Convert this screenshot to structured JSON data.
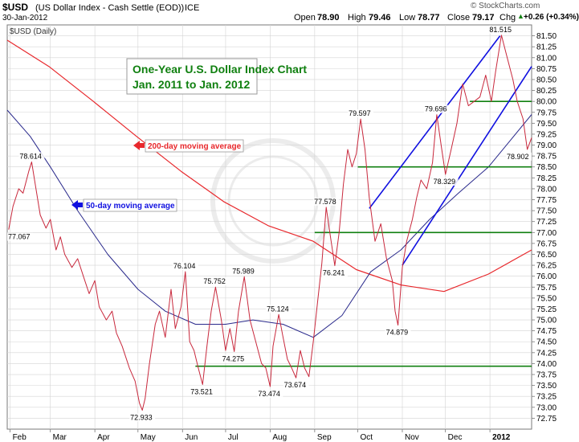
{
  "header": {
    "symbol": "$USD",
    "name": "(US Dollar Index - Cash Settle (EOD))",
    "exchange": "ICE",
    "date": "30-Jan-2012",
    "stockcharts": "© StockCharts.com",
    "open_label": "Open",
    "open_value": "78.90",
    "high_label": "High",
    "high_value": "79.46",
    "low_label": "Low",
    "low_value": "78.77",
    "close_label": "Close",
    "close_value": "79.17",
    "chg_label": "Chg",
    "chg_value": "+0.26 (+0.34%)",
    "chg_icon": "triangle-up-icon",
    "legend_series": "$USD (Daily)"
  },
  "colors": {
    "price": "#c8283c",
    "ma50": "#2a2a8c",
    "ma200": "#e8282c",
    "channel": "#1010e0",
    "support": "#108010",
    "title": "#108010",
    "grid": "#d4d4d4"
  },
  "chart_data": {
    "type": "line",
    "title": "One-Year U.S. Dollar Index Chart",
    "subtitle": "Jan. 2011 to Jan. 2012",
    "xlabel": "",
    "ylabel": "",
    "ylim": [
      72.5,
      81.75
    ],
    "y_ticks": [
      "72.75",
      "73.00",
      "73.25",
      "73.50",
      "73.75",
      "74.00",
      "74.25",
      "74.50",
      "74.75",
      "75.00",
      "75.25",
      "75.50",
      "75.75",
      "76.00",
      "76.25",
      "76.50",
      "76.75",
      "77.00",
      "77.25",
      "77.50",
      "77.75",
      "78.00",
      "78.25",
      "78.50",
      "78.75",
      "79.00",
      "79.25",
      "79.50",
      "79.75",
      "80.00",
      "80.25",
      "80.50",
      "80.75",
      "81.00",
      "81.25",
      "81.50"
    ],
    "x_labels": [
      "Feb",
      "Mar",
      "Apr",
      "May",
      "Jun",
      "Jul",
      "Aug",
      "Sep",
      "Oct",
      "Nov",
      "Dec",
      "2012"
    ],
    "x_range": [
      "2011-01-30",
      "2012-01-30"
    ],
    "grid": true,
    "series": [
      {
        "name": "$USD (Daily)",
        "color": "#c8283c",
        "points": [
          [
            "2011-01-31",
            77.067
          ],
          [
            "2011-02-03",
            77.6
          ],
          [
            "2011-02-07",
            78.0
          ],
          [
            "2011-02-10",
            77.9
          ],
          [
            "2011-02-14",
            78.4
          ],
          [
            "2011-02-16",
            78.614
          ],
          [
            "2011-02-19",
            78.0
          ],
          [
            "2011-02-22",
            77.4
          ],
          [
            "2011-02-26",
            77.1
          ],
          [
            "2011-03-01",
            77.3
          ],
          [
            "2011-03-05",
            76.6
          ],
          [
            "2011-03-08",
            76.9
          ],
          [
            "2011-03-11",
            76.5
          ],
          [
            "2011-03-16",
            76.2
          ],
          [
            "2011-03-20",
            76.4
          ],
          [
            "2011-03-24",
            76.0
          ],
          [
            "2011-03-28",
            75.6
          ],
          [
            "2011-04-01",
            75.9
          ],
          [
            "2011-04-04",
            75.3
          ],
          [
            "2011-04-09",
            75.0
          ],
          [
            "2011-04-13",
            75.2
          ],
          [
            "2011-04-16",
            74.7
          ],
          [
            "2011-04-20",
            74.4
          ],
          [
            "2011-04-25",
            73.9
          ],
          [
            "2011-04-29",
            73.6
          ],
          [
            "2011-05-02",
            73.1
          ],
          [
            "2011-05-04",
            72.933
          ],
          [
            "2011-05-06",
            73.2
          ],
          [
            "2011-05-09",
            74.0
          ],
          [
            "2011-05-13",
            74.9
          ],
          [
            "2011-05-16",
            75.2
          ],
          [
            "2011-05-20",
            74.6
          ],
          [
            "2011-05-24",
            75.7
          ],
          [
            "2011-05-27",
            74.8
          ],
          [
            "2011-05-31",
            75.3
          ],
          [
            "2011-06-03",
            76.104
          ],
          [
            "2011-06-06",
            74.5
          ],
          [
            "2011-06-09",
            74.3
          ],
          [
            "2011-06-12",
            73.9
          ],
          [
            "2011-06-15",
            73.521
          ],
          [
            "2011-06-18",
            74.4
          ],
          [
            "2011-06-21",
            75.2
          ],
          [
            "2011-06-24",
            75.752
          ],
          [
            "2011-06-28",
            75.0
          ],
          [
            "2011-07-01",
            74.3
          ],
          [
            "2011-07-04",
            74.8
          ],
          [
            "2011-07-07",
            74.275
          ],
          [
            "2011-07-10",
            75.2
          ],
          [
            "2011-07-14",
            75.989
          ],
          [
            "2011-07-18",
            75.0
          ],
          [
            "2011-07-22",
            74.5
          ],
          [
            "2011-07-26",
            74.0
          ],
          [
            "2011-07-29",
            73.9
          ],
          [
            "2011-08-01",
            73.474
          ],
          [
            "2011-08-03",
            74.4
          ],
          [
            "2011-08-07",
            75.124
          ],
          [
            "2011-08-10",
            74.6
          ],
          [
            "2011-08-13",
            74.1
          ],
          [
            "2011-08-16",
            73.9
          ],
          [
            "2011-08-19",
            73.674
          ],
          [
            "2011-08-22",
            74.3
          ],
          [
            "2011-08-25",
            73.9
          ],
          [
            "2011-08-28",
            73.7
          ],
          [
            "2011-08-31",
            74.5
          ],
          [
            "2011-09-03",
            75.4
          ],
          [
            "2011-09-06",
            76.3
          ],
          [
            "2011-09-09",
            77.578
          ],
          [
            "2011-09-12",
            76.9
          ],
          [
            "2011-09-15",
            76.241
          ],
          [
            "2011-09-18",
            77.0
          ],
          [
            "2011-09-21",
            78.1
          ],
          [
            "2011-09-24",
            78.9
          ],
          [
            "2011-09-27",
            78.5
          ],
          [
            "2011-09-30",
            78.8
          ],
          [
            "2011-10-03",
            79.597
          ],
          [
            "2011-10-06",
            78.9
          ],
          [
            "2011-10-09",
            77.8
          ],
          [
            "2011-10-13",
            76.8
          ],
          [
            "2011-10-17",
            77.2
          ],
          [
            "2011-10-21",
            76.4
          ],
          [
            "2011-10-25",
            75.9
          ],
          [
            "2011-10-27",
            75.2
          ],
          [
            "2011-10-29",
            74.879
          ],
          [
            "2011-11-01",
            76.2
          ],
          [
            "2011-11-04",
            76.8
          ],
          [
            "2011-11-08",
            77.3
          ],
          [
            "2011-11-11",
            77.8
          ],
          [
            "2011-11-14",
            78.2
          ],
          [
            "2011-11-18",
            78.0
          ],
          [
            "2011-11-22",
            78.6
          ],
          [
            "2011-11-25",
            79.696
          ],
          [
            "2011-11-28",
            79.0
          ],
          [
            "2011-12-01",
            78.329
          ],
          [
            "2011-12-05",
            78.9
          ],
          [
            "2011-12-09",
            79.5
          ],
          [
            "2011-12-13",
            80.4
          ],
          [
            "2011-12-17",
            79.9
          ],
          [
            "2011-12-21",
            80.0
          ],
          [
            "2011-12-25",
            80.1
          ],
          [
            "2011-12-29",
            80.6
          ],
          [
            "2012-01-02",
            80.0
          ],
          [
            "2012-01-05",
            80.7
          ],
          [
            "2012-01-09",
            81.515
          ],
          [
            "2012-01-13",
            81.0
          ],
          [
            "2012-01-17",
            80.5
          ],
          [
            "2012-01-20",
            80.0
          ],
          [
            "2012-01-24",
            79.6
          ],
          [
            "2012-01-27",
            78.902
          ],
          [
            "2012-01-30",
            79.17
          ]
        ]
      },
      {
        "name": "50-day moving average",
        "color": "#2a2a8c",
        "points": [
          [
            "2011-01-30",
            79.8
          ],
          [
            "2011-02-15",
            79.2
          ],
          [
            "2011-03-01",
            78.5
          ],
          [
            "2011-03-20",
            77.5
          ],
          [
            "2011-04-10",
            76.5
          ],
          [
            "2011-05-01",
            75.7
          ],
          [
            "2011-05-20",
            75.2
          ],
          [
            "2011-06-10",
            74.9
          ],
          [
            "2011-07-01",
            74.9
          ],
          [
            "2011-07-20",
            75.0
          ],
          [
            "2011-08-10",
            74.9
          ],
          [
            "2011-08-31",
            74.6
          ],
          [
            "2011-09-20",
            75.1
          ],
          [
            "2011-10-10",
            76.1
          ],
          [
            "2011-10-31",
            76.6
          ],
          [
            "2011-11-20",
            77.3
          ],
          [
            "2011-12-10",
            77.9
          ],
          [
            "2011-12-31",
            78.5
          ],
          [
            "2012-01-15",
            79.1
          ],
          [
            "2012-01-30",
            79.7
          ]
        ]
      },
      {
        "name": "200-day moving average",
        "color": "#e8282c",
        "points": [
          [
            "2011-01-30",
            81.4
          ],
          [
            "2011-02-28",
            80.8
          ],
          [
            "2011-03-31",
            80.0
          ],
          [
            "2011-04-30",
            79.2
          ],
          [
            "2011-05-31",
            78.4
          ],
          [
            "2011-06-30",
            77.7
          ],
          [
            "2011-07-31",
            77.15
          ],
          [
            "2011-08-31",
            76.8
          ],
          [
            "2011-09-30",
            76.15
          ],
          [
            "2011-10-31",
            75.8
          ],
          [
            "2011-11-30",
            75.65
          ],
          [
            "2011-12-31",
            76.05
          ],
          [
            "2012-01-30",
            76.6
          ]
        ]
      }
    ],
    "data_labels": [
      {
        "date": "2011-01-31",
        "value": "77.067"
      },
      {
        "date": "2011-02-16",
        "value": "78.614"
      },
      {
        "date": "2011-05-04",
        "value": "72.933"
      },
      {
        "date": "2011-06-03",
        "value": "76.104"
      },
      {
        "date": "2011-06-15",
        "value": "73.521"
      },
      {
        "date": "2011-06-24",
        "value": "75.752"
      },
      {
        "date": "2011-07-07",
        "value": "74.275"
      },
      {
        "date": "2011-07-14",
        "value": "75.989"
      },
      {
        "date": "2011-08-01",
        "value": "73.474"
      },
      {
        "date": "2011-08-07",
        "value": "75.124"
      },
      {
        "date": "2011-08-19",
        "value": "73.674"
      },
      {
        "date": "2011-09-09",
        "value": "77.578"
      },
      {
        "date": "2011-09-15",
        "value": "76.241"
      },
      {
        "date": "2011-10-03",
        "value": "79.597"
      },
      {
        "date": "2011-10-29",
        "value": "74.879"
      },
      {
        "date": "2011-11-25",
        "value": "79.696"
      },
      {
        "date": "2011-12-01",
        "value": "78.329"
      },
      {
        "date": "2012-01-09",
        "value": "81.515"
      },
      {
        "date": "2012-01-27",
        "value": "78.902"
      }
    ],
    "support_lines": [
      {
        "from": "2011-06-10",
        "to": "2012-01-30",
        "value": 73.94
      },
      {
        "from": "2011-09-01",
        "to": "2012-01-30",
        "value": 77.0
      },
      {
        "from": "2011-10-01",
        "to": "2012-01-30",
        "value": 78.5
      },
      {
        "from": "2011-12-18",
        "to": "2012-01-30",
        "value": 80.0
      }
    ],
    "trend_lines": [
      {
        "from": [
          "2011-10-09",
          77.55
        ],
        "to": [
          "2012-01-08",
          81.5
        ]
      },
      {
        "from": [
          "2011-11-01",
          76.25
        ],
        "to": [
          "2012-01-30",
          80.8
        ]
      }
    ],
    "annotations": [
      {
        "text": "200-day moving average",
        "color": "#e8282c",
        "icon": "arrow-left-icon"
      },
      {
        "text": "50-day moving average",
        "color": "#1010e0",
        "icon": "arrow-left-icon"
      }
    ]
  }
}
